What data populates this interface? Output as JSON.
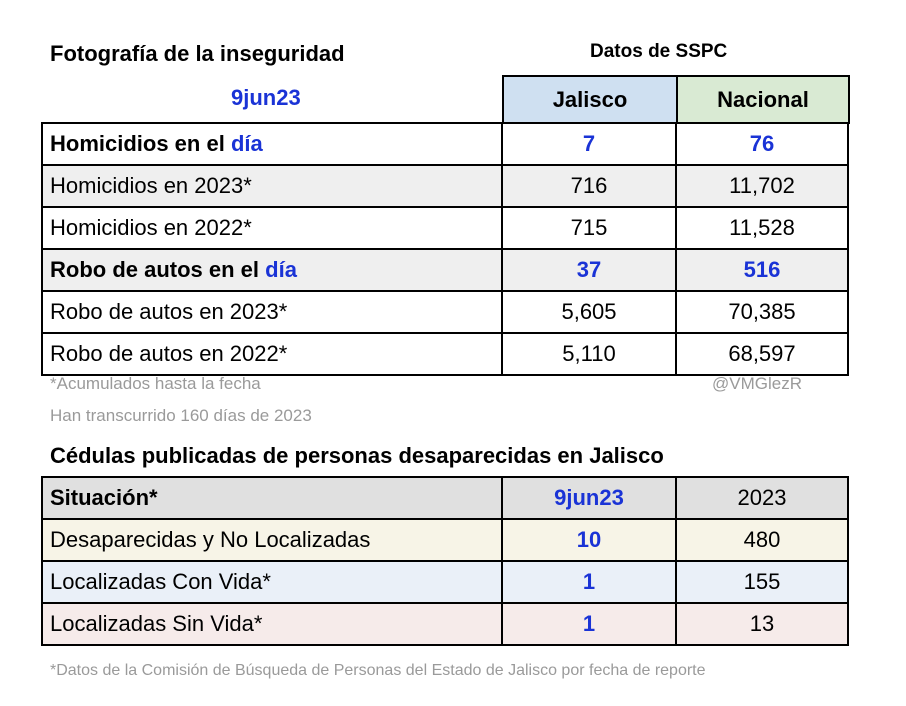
{
  "header": {
    "title": "Fotografía de la inseguridad",
    "source": "Datos de SSPC",
    "date": "9jun23",
    "col_jalisco": "Jalisco",
    "col_nacional": "Nacional",
    "col_jalisco_bg": "#cfe0f1",
    "col_nacional_bg": "#d9ead3"
  },
  "table1": {
    "rows": [
      {
        "label_pre": "Homicidios en el ",
        "label_hl": "día",
        "jalisco": "7",
        "nacional": "76"
      },
      {
        "label": "Homicidios en 2023*",
        "jalisco": "716",
        "nacional": "11,702"
      },
      {
        "label": "Homicidios en 2022*",
        "jalisco": "715",
        "nacional": "11,528"
      },
      {
        "label_pre": "Robo de autos en el ",
        "label_hl": "día",
        "jalisco": "37",
        "nacional": "516"
      },
      {
        "label": "Robo de autos en 2023*",
        "jalisco": "5,605",
        "nacional": "70,385"
      },
      {
        "label": "Robo de autos en 2022*",
        "jalisco": "5,110",
        "nacional": "68,597"
      }
    ]
  },
  "notes": {
    "accum": "*Acumulados hasta la fecha",
    "handle": "@VMGlezR",
    "elapsed": "Han transcurrido 160 días de 2023"
  },
  "table2": {
    "title": "Cédulas publicadas de personas desaparecidas en Jalisco",
    "header": {
      "label": "Situación*",
      "date": "9jun23",
      "year": "2023"
    },
    "rows": [
      {
        "label": "Desaparecidas y No Localizadas",
        "day": "10",
        "year": "480",
        "bg": "#f7f4e7"
      },
      {
        "label": "Localizadas Con Vida*",
        "day": "1",
        "year": "155",
        "bg": "#eaf0f8"
      },
      {
        "label": "Localizadas Sin Vida*",
        "day": "1",
        "year": "13",
        "bg": "#f6ebea"
      }
    ],
    "header_bg": "#e0e0e0"
  },
  "footnote": "*Datos de la Comisión de Búsqueda de Personas del Estado de Jalisco por fecha de reporte",
  "colors": {
    "accent_blue": "#1a33d6",
    "muted": "#9a9a9a"
  }
}
